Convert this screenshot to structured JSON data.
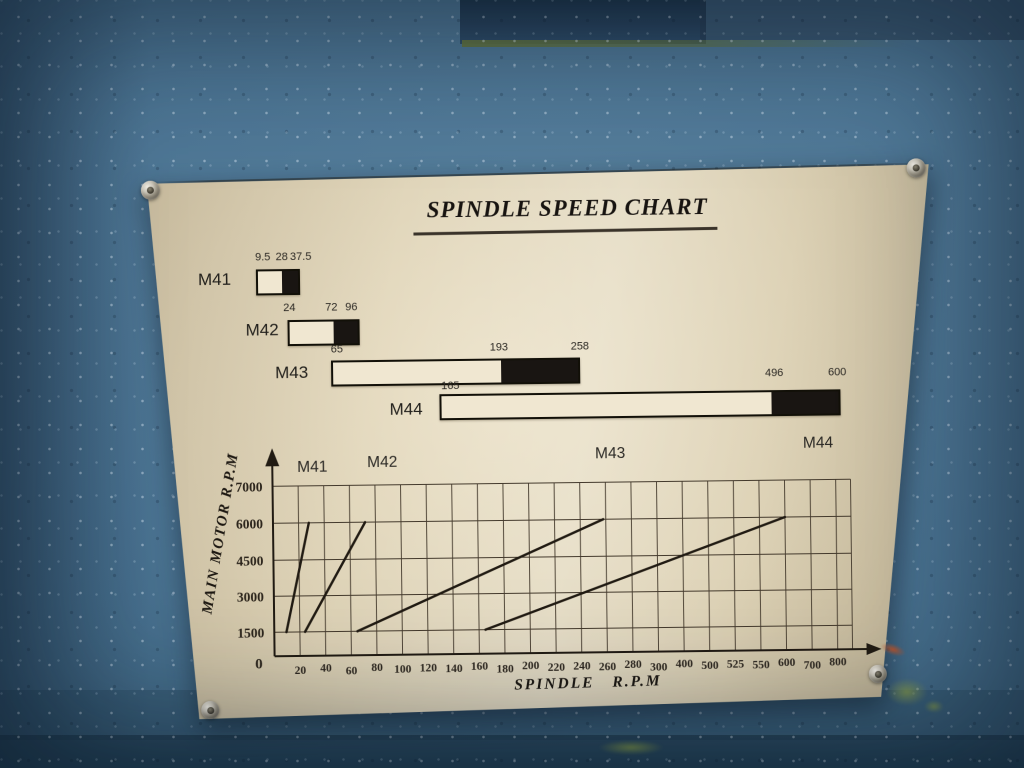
{
  "colors": {
    "machine_blue": "#4a7392",
    "patch_navy": "#2b4763",
    "plate_beige": "#ddd2b6",
    "bar_black": "#191512",
    "smudge_green": "#7a924a",
    "smudge_orange": "#be5428"
  },
  "plate": {
    "title": "SPINDLE SPEED CHART",
    "gear_bars": [
      {
        "label": "M41",
        "ticks": [
          "9.5",
          "28",
          "37.5"
        ],
        "segments": [
          {
            "from": "9.5",
            "to": "28",
            "fill": "white"
          },
          {
            "from": "28",
            "to": "37.5",
            "fill": "black"
          }
        ]
      },
      {
        "label": "M42",
        "ticks": [
          "24",
          "72",
          "96"
        ],
        "segments": [
          {
            "from": "24",
            "to": "72",
            "fill": "white"
          },
          {
            "from": "72",
            "to": "96",
            "fill": "black"
          }
        ]
      },
      {
        "label": "M43",
        "ticks": [
          "65",
          "193",
          "258"
        ],
        "segments": [
          {
            "from": "65",
            "to": "193",
            "fill": "white"
          },
          {
            "from": "193",
            "to": "258",
            "fill": "black"
          }
        ]
      },
      {
        "label": "M44",
        "ticks": [
          "165",
          "496",
          "600"
        ],
        "segments": [
          {
            "from": "165",
            "to": "496",
            "fill": "white"
          },
          {
            "from": "496",
            "to": "600",
            "fill": "black"
          }
        ]
      }
    ]
  },
  "chart_data": {
    "type": "line",
    "title": "SPINDLE SPEED CHART",
    "xlabel": "SPINDLE  R.P.M",
    "ylabel": "MAIN  MOTOR  R.P.M",
    "x_tick_labels": [
      "0",
      "20",
      "40",
      "60",
      "80",
      "100",
      "120",
      "140",
      "160",
      "180",
      "200",
      "220",
      "240",
      "260",
      "280",
      "300",
      "400",
      "500",
      "525",
      "550",
      "600",
      "700",
      "800"
    ],
    "x_tick_values": [
      0,
      20,
      40,
      60,
      80,
      100,
      120,
      140,
      160,
      180,
      200,
      220,
      240,
      260,
      280,
      300,
      400,
      500,
      525,
      550,
      600,
      700,
      800
    ],
    "y_tick_labels": [
      "0",
      "1500",
      "3000",
      "4500",
      "6000",
      "7000"
    ],
    "y_tick_values": [
      0,
      1500,
      3000,
      4500,
      6000,
      7000
    ],
    "grid": true,
    "legend_position": "labels-above-plot",
    "axis_note": "x ticks drawn at equal pixel spacing (non-linear value scale)",
    "series": [
      {
        "name": "M41",
        "points": [
          [
            9.5,
            1500
          ],
          [
            28,
            6000
          ]
        ]
      },
      {
        "name": "M42",
        "points": [
          [
            24,
            1500
          ],
          [
            72,
            6000
          ]
        ]
      },
      {
        "name": "M43",
        "points": [
          [
            65,
            1500
          ],
          [
            258,
            6000
          ]
        ]
      },
      {
        "name": "M44",
        "points": [
          [
            165,
            1500
          ],
          [
            600,
            6000
          ]
        ]
      }
    ]
  }
}
